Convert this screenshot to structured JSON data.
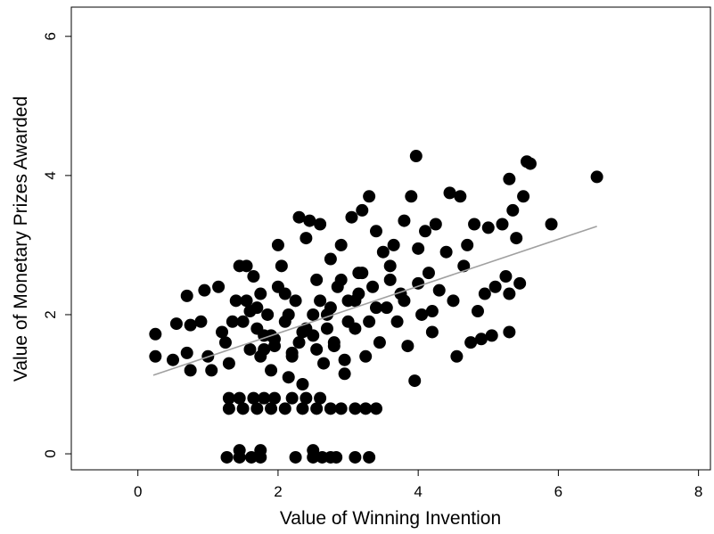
{
  "chart_data": {
    "type": "scatter",
    "x_label": "Value of Winning Invention",
    "y_label": "Value of Monetary Prizes Awarded",
    "xlim": [
      -0.95,
      8.17
    ],
    "ylim": [
      -0.23,
      6.42
    ],
    "xticks": [
      0,
      2,
      4,
      6,
      8
    ],
    "yticks": [
      0,
      2,
      4,
      6
    ],
    "series": [
      {
        "color": "#000000",
        "x": [
          1.27,
          1.45,
          1.62,
          1.75,
          2.25,
          2.5,
          2.63,
          2.75,
          2.83,
          3.1,
          3.3,
          1.45,
          1.75,
          2.5,
          1.3,
          1.5,
          1.7,
          1.9,
          2.1,
          2.35,
          2.55,
          2.75,
          2.9,
          3.1,
          3.25,
          3.4,
          1.3,
          1.45,
          1.65,
          1.8,
          1.95,
          2.2,
          2.4,
          2.6,
          0.25,
          0.25,
          0.5,
          0.55,
          0.7,
          0.7,
          0.75,
          0.75,
          0.9,
          0.95,
          1.0,
          1.05,
          1.15,
          1.2,
          1.25,
          1.3,
          1.4,
          1.45,
          1.55,
          1.6,
          1.65,
          1.7,
          1.75,
          1.8,
          1.85,
          1.9,
          1.95,
          2.0,
          2.05,
          2.1,
          2.15,
          2.2,
          2.25,
          2.3,
          2.35,
          2.4,
          2.45,
          2.5,
          2.55,
          2.6,
          2.65,
          2.7,
          2.75,
          2.8,
          2.85,
          2.9,
          2.95,
          3.0,
          3.05,
          3.1,
          3.15,
          3.2,
          3.25,
          3.3,
          3.35,
          3.4,
          3.45,
          3.5,
          3.55,
          3.6,
          3.65,
          3.7,
          3.75,
          3.8,
          3.85,
          3.9,
          3.95,
          3.97,
          4.0,
          4.05,
          4.1,
          4.15,
          4.2,
          4.25,
          4.3,
          4.4,
          4.45,
          4.5,
          4.55,
          4.6,
          4.65,
          4.7,
          4.75,
          4.8,
          4.85,
          4.9,
          4.95,
          5.0,
          5.05,
          5.1,
          5.2,
          5.3,
          5.3,
          5.35,
          5.4,
          5.45,
          5.5,
          5.55,
          5.6,
          5.9,
          6.55,
          5.3,
          5.25,
          1.5,
          1.7,
          1.9,
          2.1,
          2.3,
          2.5,
          2.7,
          2.9,
          3.1,
          3.3,
          1.6,
          1.8,
          2.0,
          2.2,
          2.4,
          2.6,
          2.8,
          3.0,
          3.2,
          3.4,
          1.35,
          1.55,
          1.75,
          1.95,
          2.15,
          2.35,
          2.55,
          2.75,
          2.95,
          3.15,
          3.6,
          3.8,
          4.0,
          4.2
        ],
        "y": [
          -0.05,
          -0.05,
          -0.05,
          -0.05,
          -0.05,
          -0.05,
          -0.05,
          -0.05,
          -0.05,
          -0.05,
          -0.05,
          0.05,
          0.05,
          0.05,
          0.65,
          0.65,
          0.65,
          0.65,
          0.65,
          0.65,
          0.65,
          0.65,
          0.65,
          0.65,
          0.65,
          0.65,
          0.8,
          0.8,
          0.8,
          0.8,
          0.8,
          0.8,
          0.8,
          0.8,
          1.72,
          1.4,
          1.35,
          1.87,
          2.27,
          1.45,
          1.85,
          1.2,
          1.9,
          2.35,
          1.4,
          1.2,
          2.4,
          1.75,
          1.6,
          1.3,
          2.2,
          2.7,
          2.7,
          2.05,
          2.55,
          1.8,
          2.3,
          1.5,
          2.0,
          1.2,
          1.65,
          3.0,
          2.7,
          1.9,
          1.1,
          1.45,
          2.2,
          3.4,
          1.0,
          3.1,
          3.35,
          1.7,
          2.5,
          3.3,
          1.3,
          2.0,
          2.8,
          1.55,
          2.4,
          3.0,
          1.15,
          2.2,
          3.4,
          1.8,
          2.6,
          3.5,
          1.4,
          3.7,
          2.4,
          3.2,
          1.6,
          2.9,
          2.1,
          2.5,
          3.0,
          1.9,
          2.3,
          3.35,
          1.55,
          3.7,
          1.05,
          4.28,
          2.95,
          2.0,
          3.2,
          2.6,
          1.75,
          3.3,
          2.35,
          2.9,
          3.75,
          2.2,
          1.4,
          3.7,
          2.7,
          3.0,
          1.6,
          3.3,
          2.05,
          1.65,
          2.3,
          3.25,
          1.7,
          2.4,
          3.3,
          1.75,
          3.95,
          3.5,
          3.1,
          2.45,
          3.7,
          4.2,
          4.17,
          3.3,
          3.98,
          2.3,
          2.55,
          1.9,
          2.1,
          1.7,
          2.3,
          1.6,
          2.0,
          1.8,
          2.5,
          2.2,
          1.9,
          1.5,
          1.7,
          2.4,
          1.4,
          1.8,
          2.2,
          1.6,
          1.9,
          2.6,
          2.1,
          1.9,
          2.2,
          1.4,
          1.55,
          2.0,
          1.75,
          1.5,
          2.1,
          1.35,
          2.3,
          2.7,
          2.2,
          2.45,
          2.05
        ]
      }
    ],
    "fit_line": {
      "color": "#a0a0a0",
      "x": [
        0.22,
        6.55
      ],
      "y": [
        1.13,
        3.27
      ]
    }
  }
}
